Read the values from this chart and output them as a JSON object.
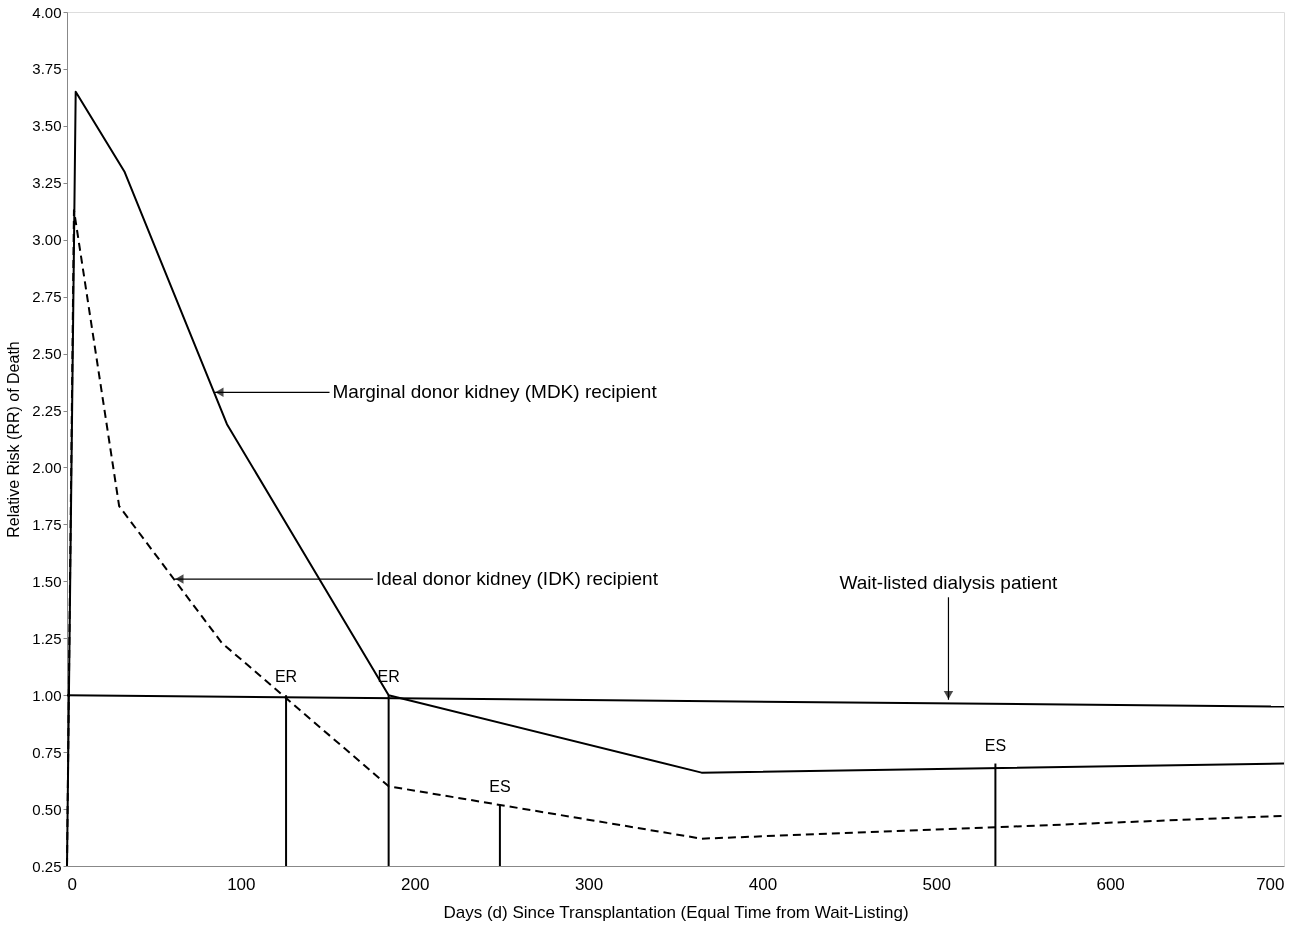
{
  "chart_data": {
    "type": "line",
    "xlabel": "Days (d)  Since Transplantation (Equal Time from Wait-Listing)",
    "ylabel": "Relative Risk (RR) of Death",
    "x": [
      0,
      5,
      33,
      92,
      185,
      365,
      700
    ],
    "series": [
      {
        "color": "#000000",
        "line_style": "solid",
        "values": [
          0.25,
          3.65,
          3.3,
          2.19,
          1.0,
          0.66,
          0.7
        ]
      },
      {
        "color": "#000000",
        "line_style": "dashed",
        "x": [
          0,
          4,
          30,
          89,
          185,
          365,
          700
        ],
        "values": [
          0.25,
          3.13,
          1.83,
          1.23,
          0.6,
          0.37,
          0.47
        ]
      },
      {
        "color": "#000000",
        "line_style": "solid",
        "x": [
          0,
          700
        ],
        "values": [
          1.0,
          0.95
        ]
      },
      {
        "color": "#000000",
        "line_style": "solid",
        "x": [
          126,
          126
        ],
        "values": [
          0.25,
          1.0
        ]
      },
      {
        "color": "#000000",
        "line_style": "solid",
        "x": [
          185,
          185
        ],
        "values": [
          0.25,
          1.0
        ]
      },
      {
        "color": "#000000",
        "line_style": "solid",
        "x": [
          249,
          249
        ],
        "values": [
          0.25,
          0.52
        ]
      },
      {
        "color": "#000000",
        "line_style": "solid",
        "x": [
          534,
          534
        ],
        "values": [
          0.25,
          0.7
        ]
      }
    ],
    "xlim": [
      0,
      700
    ],
    "xticks": [
      0,
      100,
      200,
      300,
      400,
      500,
      600,
      700
    ],
    "ylim": [
      0.25,
      4.0
    ],
    "yticks": [
      {
        "value": 0.25,
        "label": "0.25"
      },
      {
        "value": 0.5,
        "label": "0.50"
      },
      {
        "value": 0.75,
        "label": "0.75"
      },
      {
        "value": 1.0,
        "label": "1.00"
      },
      {
        "value": 1.25,
        "label": "1.25"
      },
      {
        "value": 1.5,
        "label": "1.50"
      },
      {
        "value": 1.75,
        "label": "1.75"
      },
      {
        "value": 2.0,
        "label": "2.00"
      },
      {
        "value": 2.25,
        "label": "2.25"
      },
      {
        "value": 2.5,
        "label": "2.50"
      },
      {
        "value": 2.75,
        "label": "2.75"
      },
      {
        "value": 3.0,
        "label": "3.00"
      },
      {
        "value": 3.25,
        "label": "3.25"
      },
      {
        "value": 3.5,
        "label": "3.50"
      },
      {
        "value": 3.75,
        "label": "3.75"
      },
      {
        "value": 4.0,
        "label": "4.00"
      }
    ],
    "grid": false,
    "marker": "none",
    "annotations": [
      {
        "text": "Marginal donor kidney (MDK) recipient",
        "x": 85,
        "y": 2.33
      },
      {
        "text": "Ideal donor kidney (IDK) recipient",
        "x": 62,
        "y": 1.51
      },
      {
        "text": "Wait-listed dialysis patient",
        "x": 507,
        "y": 0.98
      },
      {
        "text": "ER",
        "x": 126,
        "y": 1.0
      },
      {
        "text": "ER",
        "x": 185,
        "y": 1.0
      },
      {
        "text": "ES",
        "x": 249,
        "y": 0.52
      },
      {
        "text": "ES",
        "x": 534,
        "y": 0.7
      }
    ]
  }
}
